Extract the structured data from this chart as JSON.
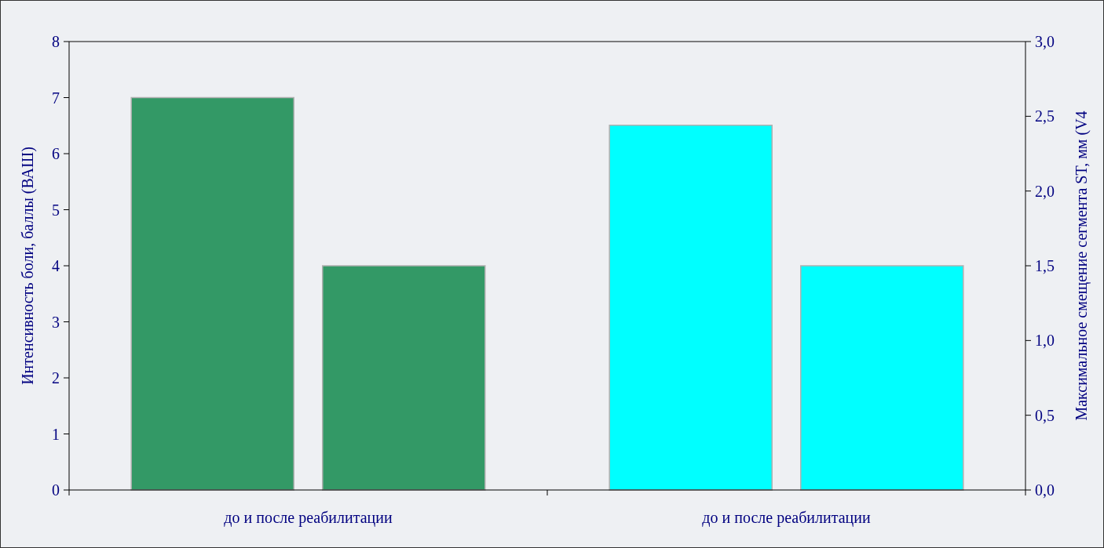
{
  "chart_data": {
    "type": "bar",
    "categories": [
      "до и после реабилитации",
      "до и после реабилитации"
    ],
    "ylabel": "Интенсивность боли, баллы (ВАШ)",
    "y2label": "Максимальное смещение сегмента ST, мм (V4",
    "ylim": [
      0,
      8
    ],
    "yticks": [
      0,
      1,
      2,
      3,
      4,
      5,
      6,
      7,
      8
    ],
    "y2lim": [
      0,
      3
    ],
    "y2ticks": [
      {
        "value": 0,
        "label": "0,0"
      },
      {
        "value": 0.5,
        "label": "0,5"
      },
      {
        "value": 1,
        "label": "1,0"
      },
      {
        "value": 1.5,
        "label": "1,5"
      },
      {
        "value": 2,
        "label": "2,0"
      },
      {
        "value": 2.5,
        "label": "2,5"
      },
      {
        "value": 3,
        "label": "3,0"
      }
    ],
    "series": [
      {
        "color": "#339966",
        "values": [
          7,
          null
        ]
      },
      {
        "color": "#339966",
        "values": [
          4,
          null
        ]
      },
      {
        "color": "#00ffff",
        "values": [
          null,
          2.44
        ],
        "axis": "y2"
      },
      {
        "color": "#00ffff",
        "values": [
          null,
          1.5
        ],
        "axis": "y2"
      }
    ],
    "grid": false
  }
}
